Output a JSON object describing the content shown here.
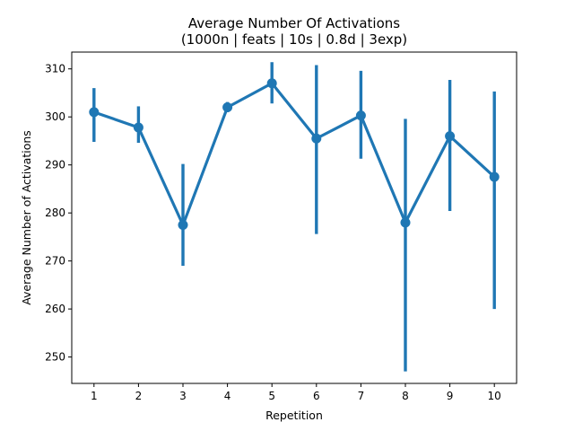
{
  "chart_data": {
    "type": "line",
    "title": "Average Number Of Activations",
    "subtitle": "(1000n | feats | 10s | 0.8d | 3exp)",
    "xlabel": "Repetition",
    "ylabel": "Average Number of Activations",
    "categories": [
      "1",
      "2",
      "3",
      "4",
      "5",
      "6",
      "7",
      "8",
      "9",
      "10"
    ],
    "ylim": [
      244.5,
      313.5
    ],
    "yticks": [
      250,
      260,
      270,
      280,
      290,
      300,
      310
    ],
    "grid": false,
    "series": [
      {
        "values": [
          301.0,
          297.8,
          277.5,
          302.0,
          307.0,
          295.5,
          300.3,
          278.0,
          296.0,
          287.5
        ],
        "error_low": [
          294.8,
          294.6,
          269.0,
          301.0,
          302.8,
          275.6,
          291.3,
          247.0,
          280.4,
          260.0
        ],
        "error_high": [
          306.0,
          302.2,
          290.2,
          303.1,
          311.4,
          310.8,
          309.6,
          299.6,
          307.7,
          305.3
        ]
      }
    ],
    "colors": {
      "line": "#1f77b4"
    }
  }
}
